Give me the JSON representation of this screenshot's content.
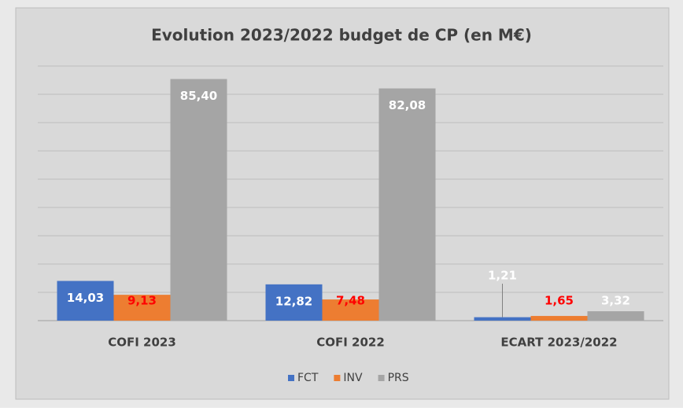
{
  "chart_data": {
    "type": "bar",
    "title": "Evolution 2023/2022 budget de CP (en M€)",
    "categories": [
      "COFI 2023",
      "COFI 2022",
      "ECART 2023/2022"
    ],
    "series": [
      {
        "name": "FCT",
        "color": "#4472c4",
        "values": [
          14.03,
          12.82,
          1.21
        ],
        "value_labels": [
          "14,03",
          "12,82",
          "1,21"
        ]
      },
      {
        "name": "INV",
        "color": "#ed7d31",
        "values": [
          9.13,
          7.48,
          1.65
        ],
        "value_labels": [
          "9,13",
          "7,48",
          "1,65"
        ]
      },
      {
        "name": "PRS",
        "color": "#a5a5a5",
        "values": [
          85.4,
          82.08,
          3.32
        ],
        "value_labels": [
          "85,40",
          "82,08",
          "3,32"
        ]
      }
    ],
    "ylim": [
      0,
      90
    ],
    "yticks": [
      0,
      10,
      20,
      30,
      40,
      50,
      60,
      70,
      80,
      90
    ],
    "grid": true,
    "legend": "bottom"
  }
}
